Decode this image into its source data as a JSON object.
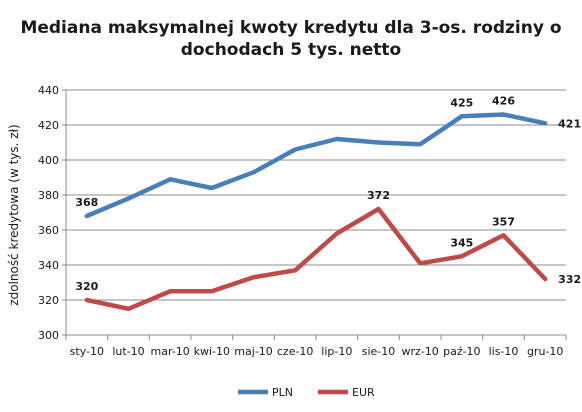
{
  "chart_data": {
    "type": "line",
    "title_lines": [
      "Mediana maksymalnej kwoty kredytu dla 3-os. rodziny o",
      "dochodach 5 tys. netto"
    ],
    "xlabel": "",
    "ylabel": "zdolność kredytowa (w tys. zł)",
    "ylim": [
      300,
      440
    ],
    "yticks": [
      300,
      320,
      340,
      360,
      380,
      400,
      420,
      440
    ],
    "grid": true,
    "legend_position": "bottom",
    "categories": [
      "sty-10",
      "lut-10",
      "mar-10",
      "kwi-10",
      "maj-10",
      "cze-10",
      "lip-10",
      "sie-10",
      "wrz-10",
      "paź-10",
      "lis-10",
      "gru-10"
    ],
    "series": [
      {
        "name": "PLN",
        "color": "#4a7ebb",
        "values": [
          368,
          378,
          389,
          384,
          393,
          406,
          412,
          410,
          409,
          425,
          426,
          421
        ],
        "labeled_indices": [
          0,
          9,
          10,
          11
        ]
      },
      {
        "name": "EUR",
        "color": "#be4b48",
        "values": [
          320,
          315,
          325,
          325,
          333,
          337,
          358,
          372,
          341,
          345,
          357,
          332
        ],
        "labeled_indices": [
          0,
          7,
          9,
          10,
          11
        ]
      }
    ]
  }
}
